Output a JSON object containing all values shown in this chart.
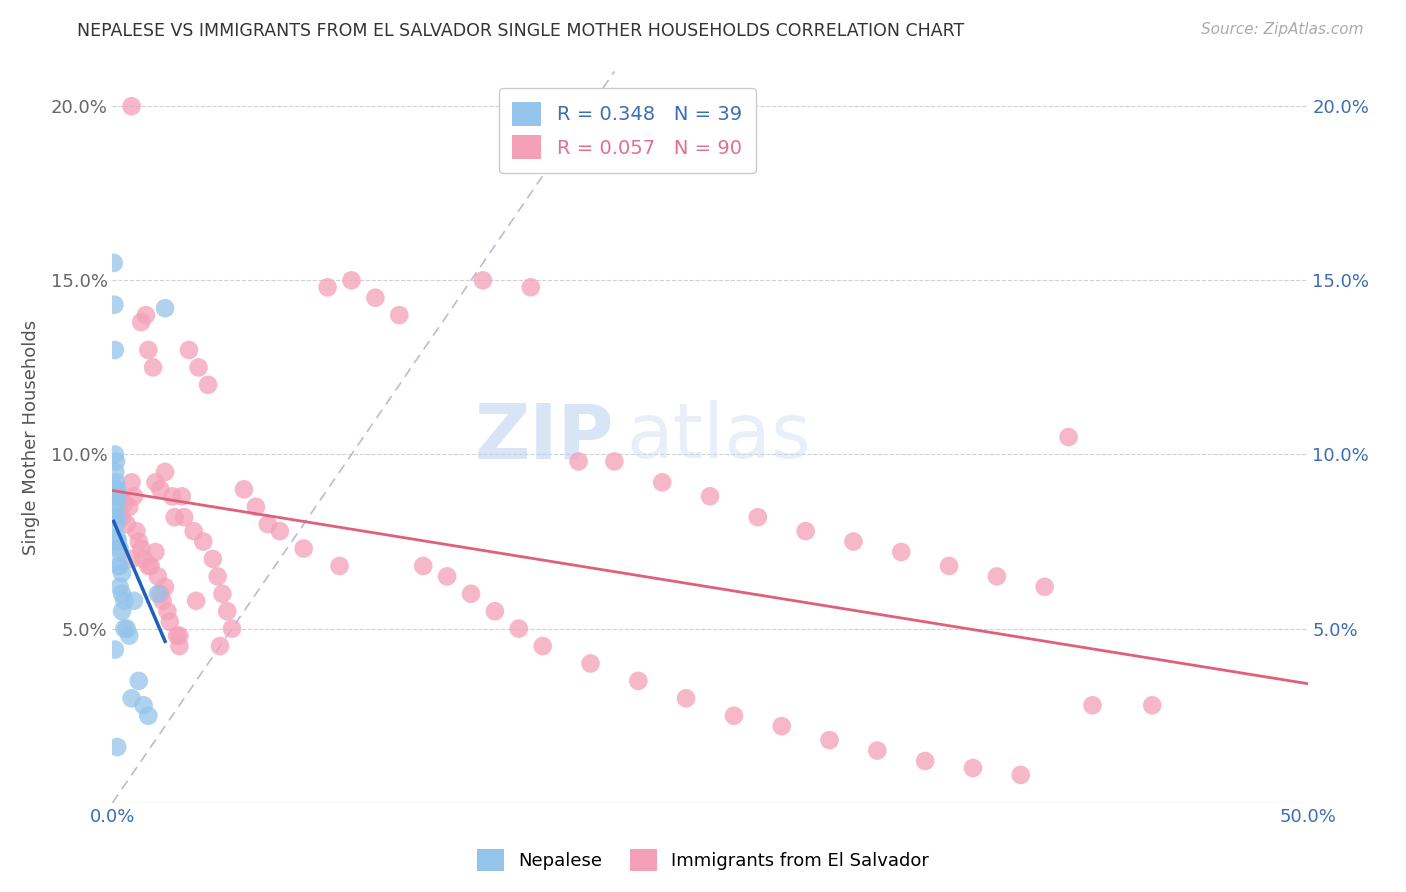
{
  "title": "NEPALESE VS IMMIGRANTS FROM EL SALVADOR SINGLE MOTHER HOUSEHOLDS CORRELATION CHART",
  "source": "Source: ZipAtlas.com",
  "ylabel": "Single Mother Households",
  "xlim": [
    0,
    0.5
  ],
  "ylim": [
    0,
    0.21
  ],
  "xticks": [
    0.0,
    0.1,
    0.2,
    0.3,
    0.4,
    0.5
  ],
  "yticks": [
    0.0,
    0.05,
    0.1,
    0.15,
    0.2
  ],
  "xticklabels": [
    "0.0%",
    "",
    "",
    "",
    "",
    "50.0%"
  ],
  "yticklabels": [
    "",
    "5.0%",
    "10.0%",
    "15.0%",
    "20.0%"
  ],
  "right_yticklabels": [
    "",
    "5.0%",
    "10.0%",
    "15.0%",
    "20.0%"
  ],
  "nepalese_color": "#94C4EA",
  "el_salvador_color": "#F4A0B8",
  "nepalese_line_color": "#1F5FBF",
  "el_salvador_line_color": "#E0607A",
  "ref_line_color": "#AAAACC",
  "nepalese_R": 0.348,
  "nepalese_N": 39,
  "el_salvador_R": 0.057,
  "el_salvador_N": 90,
  "legend_label_1": "Nepalese",
  "legend_label_2": "Immigrants from El Salvador",
  "watermark_zip": "ZIP",
  "watermark_atlas": "atlas",
  "nep_x": [
    0.0005,
    0.0006,
    0.0007,
    0.0008,
    0.001,
    0.001,
    0.001,
    0.0012,
    0.0013,
    0.0015,
    0.0015,
    0.0016,
    0.0018,
    0.002,
    0.002,
    0.002,
    0.002,
    0.0022,
    0.0025,
    0.003,
    0.003,
    0.003,
    0.003,
    0.004,
    0.004,
    0.004,
    0.005,
    0.005,
    0.006,
    0.007,
    0.008,
    0.009,
    0.011,
    0.013,
    0.015,
    0.019,
    0.022,
    0.001,
    0.002
  ],
  "nep_y": [
    0.155,
    0.088,
    0.082,
    0.143,
    0.13,
    0.1,
    0.09,
    0.095,
    0.085,
    0.092,
    0.098,
    0.08,
    0.086,
    0.09,
    0.082,
    0.088,
    0.076,
    0.075,
    0.068,
    0.073,
    0.068,
    0.062,
    0.072,
    0.066,
    0.06,
    0.055,
    0.058,
    0.05,
    0.05,
    0.048,
    0.03,
    0.058,
    0.035,
    0.028,
    0.025,
    0.06,
    0.142,
    0.044,
    0.016
  ],
  "els_x": [
    0.003,
    0.004,
    0.005,
    0.006,
    0.007,
    0.008,
    0.008,
    0.009,
    0.01,
    0.011,
    0.012,
    0.013,
    0.014,
    0.015,
    0.016,
    0.017,
    0.018,
    0.019,
    0.02,
    0.021,
    0.022,
    0.023,
    0.024,
    0.025,
    0.026,
    0.027,
    0.028,
    0.029,
    0.03,
    0.032,
    0.034,
    0.036,
    0.038,
    0.04,
    0.042,
    0.044,
    0.046,
    0.048,
    0.05,
    0.055,
    0.06,
    0.065,
    0.07,
    0.08,
    0.09,
    0.095,
    0.1,
    0.11,
    0.12,
    0.13,
    0.14,
    0.15,
    0.155,
    0.16,
    0.17,
    0.175,
    0.18,
    0.195,
    0.2,
    0.21,
    0.22,
    0.23,
    0.24,
    0.25,
    0.26,
    0.27,
    0.28,
    0.29,
    0.3,
    0.31,
    0.32,
    0.33,
    0.34,
    0.35,
    0.36,
    0.37,
    0.38,
    0.39,
    0.4,
    0.41,
    0.015,
    0.008,
    0.035,
    0.028,
    0.012,
    0.022,
    0.018,
    0.045,
    0.435,
    0.02
  ],
  "els_y": [
    0.088,
    0.082,
    0.086,
    0.08,
    0.085,
    0.2,
    0.092,
    0.088,
    0.078,
    0.075,
    0.073,
    0.07,
    0.14,
    0.13,
    0.068,
    0.125,
    0.072,
    0.065,
    0.06,
    0.058,
    0.062,
    0.055,
    0.052,
    0.088,
    0.082,
    0.048,
    0.045,
    0.088,
    0.082,
    0.13,
    0.078,
    0.125,
    0.075,
    0.12,
    0.07,
    0.065,
    0.06,
    0.055,
    0.05,
    0.09,
    0.085,
    0.08,
    0.078,
    0.073,
    0.148,
    0.068,
    0.15,
    0.145,
    0.14,
    0.068,
    0.065,
    0.06,
    0.15,
    0.055,
    0.05,
    0.148,
    0.045,
    0.098,
    0.04,
    0.098,
    0.035,
    0.092,
    0.03,
    0.088,
    0.025,
    0.082,
    0.022,
    0.078,
    0.018,
    0.075,
    0.015,
    0.072,
    0.012,
    0.068,
    0.01,
    0.065,
    0.008,
    0.062,
    0.105,
    0.028,
    0.068,
    0.07,
    0.058,
    0.048,
    0.138,
    0.095,
    0.092,
    0.045,
    0.028,
    0.09
  ]
}
